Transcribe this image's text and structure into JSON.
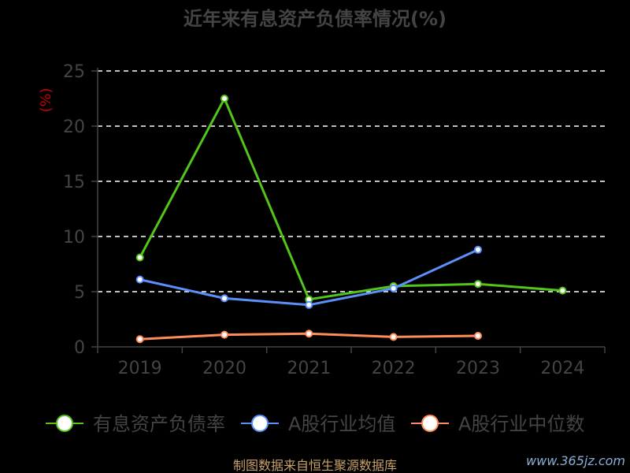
{
  "chart_data": {
    "type": "line",
    "title": "近年来有息资产负债率情况(%)",
    "ylabel": "(%)",
    "xlabel": "",
    "categories": [
      "2019",
      "2020",
      "2021",
      "2022",
      "2023",
      "2024"
    ],
    "ylim": [
      0,
      25
    ],
    "yticks": [
      0,
      5,
      10,
      15,
      20,
      25
    ],
    "grid": true,
    "legend_position": "bottom",
    "series": [
      {
        "name": "有息资产负债率",
        "color": "#52c41a",
        "values": [
          8.1,
          22.5,
          4.3,
          5.5,
          5.7,
          5.1
        ]
      },
      {
        "name": "A股行业均值",
        "color": "#5b8ff9",
        "values": [
          6.1,
          4.4,
          3.8,
          5.3,
          8.8,
          null
        ]
      },
      {
        "name": "A股行业中位数",
        "color": "#ff8c5a",
        "values": [
          0.7,
          1.1,
          1.2,
          0.9,
          1.0,
          null
        ]
      }
    ]
  },
  "footer": {
    "source": "制图数据来自恒生聚源数据库",
    "watermark": "www.365jz.com"
  }
}
